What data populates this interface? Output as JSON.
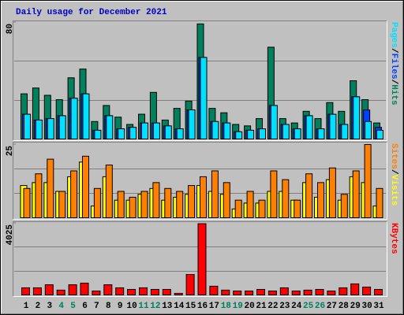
{
  "chart_data": [
    {
      "type": "bar",
      "title": "Daily usage for December 2021",
      "ylim": [
        0,
        80
      ],
      "yticks": [
        80
      ],
      "legend_separator": "/",
      "series": [
        {
          "name": "Hits",
          "color": "#00805c",
          "values": [
            31,
            35,
            30,
            27,
            42,
            48,
            12,
            23,
            15,
            10,
            17,
            32,
            13,
            21,
            26,
            79,
            21,
            18,
            10,
            9,
            14,
            63,
            14,
            11,
            19,
            14,
            25,
            19,
            40,
            27,
            11
          ]
        },
        {
          "name": "Files",
          "color": "#0040ff",
          "values": [
            17,
            13,
            14,
            16,
            28,
            31,
            6,
            16,
            7,
            8,
            11,
            11,
            9,
            7,
            20,
            56,
            12,
            11,
            5,
            6,
            7,
            23,
            10,
            7,
            16,
            7,
            17,
            10,
            29,
            20,
            8
          ]
        },
        {
          "name": "Pages",
          "color": "#00e0ff",
          "values": [
            17,
            13,
            14,
            16,
            28,
            31,
            6,
            16,
            7,
            8,
            11,
            11,
            9,
            7,
            20,
            56,
            12,
            11,
            5,
            6,
            7,
            23,
            10,
            7,
            16,
            7,
            17,
            10,
            29,
            12,
            6
          ]
        }
      ]
    },
    {
      "type": "bar",
      "ylim": [
        0,
        25
      ],
      "yticks": [
        25
      ],
      "legend_separator": "/",
      "series": [
        {
          "name": "Visits",
          "color": "#ffff00",
          "values": [
            11,
            12,
            12,
            9,
            14,
            19,
            4,
            14,
            6,
            6,
            8,
            10,
            6,
            7,
            8,
            11,
            9,
            8,
            3,
            5,
            5,
            9,
            9,
            6,
            12,
            7,
            13,
            6,
            14,
            12,
            4
          ]
        },
        {
          "name": "Sites",
          "color": "#ff8000",
          "values": [
            10,
            15,
            20,
            9,
            16,
            21,
            10,
            18,
            9,
            7,
            9,
            12,
            10,
            9,
            11,
            14,
            16,
            12,
            6,
            9,
            6,
            16,
            13,
            6,
            15,
            12,
            17,
            8,
            16,
            25,
            10
          ]
        }
      ]
    },
    {
      "type": "bar",
      "ylim": [
        0,
        4025
      ],
      "yticks": [
        4025
      ],
      "categories": [
        "1",
        "2",
        "3",
        "4",
        "5",
        "6",
        "7",
        "8",
        "9",
        "10",
        "11",
        "12",
        "13",
        "14",
        "15",
        "16",
        "17",
        "18",
        "19",
        "20",
        "21",
        "22",
        "23",
        "24",
        "25",
        "26",
        "27",
        "28",
        "29",
        "30",
        "31"
      ],
      "category_colors": [
        "#000000",
        "#000000",
        "#000000",
        "#00805c",
        "#00805c",
        "#000000",
        "#000000",
        "#000000",
        "#000000",
        "#000000",
        "#00805c",
        "#00805c",
        "#000000",
        "#000000",
        "#000000",
        "#000000",
        "#000000",
        "#00805c",
        "#00805c",
        "#000000",
        "#000000",
        "#000000",
        "#000000",
        "#000000",
        "#00805c",
        "#00805c",
        "#000000",
        "#000000",
        "#000000",
        "#000000",
        "#000000"
      ],
      "series": [
        {
          "name": "KBytes",
          "color": "#ff0000",
          "values": [
            400,
            400,
            570,
            270,
            570,
            660,
            220,
            570,
            400,
            310,
            400,
            310,
            310,
            90,
            1150,
            4000,
            490,
            270,
            220,
            220,
            310,
            220,
            400,
            220,
            270,
            310,
            220,
            400,
            620,
            440,
            310
          ]
        }
      ]
    }
  ]
}
